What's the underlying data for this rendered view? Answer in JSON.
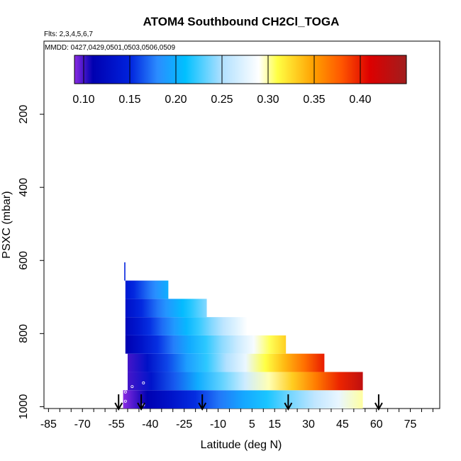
{
  "chart_data": {
    "type": "heatmap",
    "title": "ATOM4 Southbound CH2Cl_TOGA",
    "subtitle_flights": "Flts: 2,3,4,5,6,7",
    "subtitle_dates": "MMDD: 0427,0429,0501,0503,0506,0509",
    "xlabel": "Latitude (deg N)",
    "ylabel": "PSXC (mbar)",
    "xlim": [
      -87,
      88
    ],
    "ylim": [
      1005,
      0
    ],
    "x_ticks": [
      -85,
      -70,
      -55,
      -40,
      -25,
      -10,
      5,
      15,
      30,
      45,
      60,
      75
    ],
    "x_tick_labels": [
      "-85",
      "-70",
      "-55",
      "-40",
      "-25",
      "-10",
      "5",
      "15",
      "30",
      "45",
      "60",
      "75"
    ],
    "y_ticks": [
      200,
      400,
      600,
      800,
      1000
    ],
    "y_tick_labels": [
      "200",
      "400",
      "600",
      "800",
      "1000"
    ],
    "colorbar": {
      "min": 0.09,
      "max": 0.45,
      "ticks": [
        0.1,
        0.15,
        0.2,
        0.25,
        0.3,
        0.35,
        0.4
      ],
      "tick_labels": [
        "0.10",
        "0.15",
        "0.20",
        "0.25",
        "0.30",
        "0.35",
        "0.40"
      ],
      "stops": [
        {
          "v": 0.09,
          "color": "#8a2be2"
        },
        {
          "v": 0.11,
          "color": "#0000b0"
        },
        {
          "v": 0.15,
          "color": "#0022dd"
        },
        {
          "v": 0.18,
          "color": "#2b8cff"
        },
        {
          "v": 0.21,
          "color": "#00c0ff"
        },
        {
          "v": 0.25,
          "color": "#b0e0ff"
        },
        {
          "v": 0.29,
          "color": "#ffffff"
        },
        {
          "v": 0.31,
          "color": "#ffff44"
        },
        {
          "v": 0.35,
          "color": "#ff9f00"
        },
        {
          "v": 0.38,
          "color": "#ff5500"
        },
        {
          "v": 0.41,
          "color": "#dd0000"
        },
        {
          "v": 0.45,
          "color": "#a01e1e"
        }
      ]
    },
    "layers": [
      {
        "p_top": 955,
        "p_bottom": 1005,
        "lat_start": -52,
        "lat_end": 54,
        "v_start": 0.09,
        "v_end": 0.3
      },
      {
        "p_top": 905,
        "p_bottom": 955,
        "lat_start": -50,
        "lat_end": 54,
        "v_start": 0.1,
        "v_end": 0.43
      },
      {
        "p_top": 855,
        "p_bottom": 905,
        "lat_start": -50,
        "lat_end": 37,
        "v_start": 0.1,
        "v_end": 0.4
      },
      {
        "p_top": 805,
        "p_bottom": 855,
        "lat_start": -51,
        "lat_end": 20,
        "v_start": 0.11,
        "v_end": 0.33
      },
      {
        "p_top": 755,
        "p_bottom": 805,
        "lat_start": -51,
        "lat_end": 3,
        "v_start": 0.12,
        "v_end": 0.29
      },
      {
        "p_top": 705,
        "p_bottom": 755,
        "lat_start": -51,
        "lat_end": -15,
        "v_start": 0.13,
        "v_end": 0.24
      },
      {
        "p_top": 655,
        "p_bottom": 705,
        "lat_start": -51,
        "lat_end": -32,
        "v_start": 0.14,
        "v_end": 0.2
      },
      {
        "p_top": 605,
        "p_bottom": 655,
        "lat_start": -51.5,
        "lat_end": -51,
        "v_start": 0.15,
        "v_end": 0.15
      }
    ],
    "arrows_lat": [
      -54,
      -44,
      -17,
      21,
      61
    ]
  }
}
